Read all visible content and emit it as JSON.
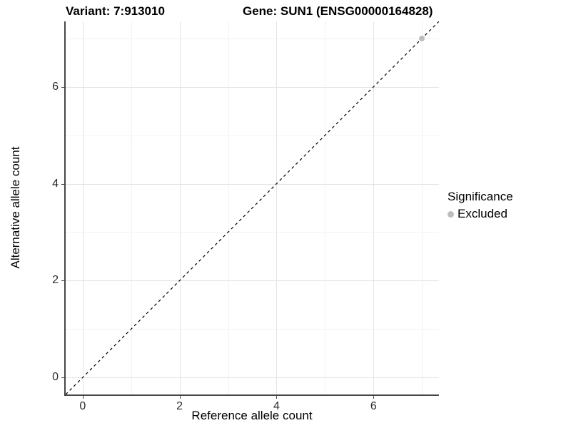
{
  "chart_data": {
    "type": "scatter",
    "title_left": "Variant: 7:913010",
    "title_right": "Gene: SUN1 (ENSG00000164828)",
    "xlabel": "Reference allele count",
    "ylabel": "Alternative allele count",
    "xlim": [
      -0.35,
      7.35
    ],
    "ylim": [
      -0.35,
      7.35
    ],
    "x_major_ticks": [
      0,
      2,
      4,
      6
    ],
    "y_major_ticks": [
      0,
      2,
      4,
      6
    ],
    "x_minor_ticks": [
      1,
      3,
      5,
      7
    ],
    "y_minor_ticks": [
      1,
      3,
      5,
      7
    ],
    "grid": true,
    "abline": {
      "slope": 1,
      "intercept": 0,
      "style": "dashed",
      "color": "#000000"
    },
    "series": [
      {
        "name": "Excluded",
        "color": "#bdbdbd",
        "points": [
          {
            "x": 7,
            "y": 7
          }
        ]
      }
    ],
    "legend": {
      "title": "Significance",
      "position": "right",
      "items": [
        {
          "label": "Excluded",
          "color": "#bdbdbd"
        }
      ]
    },
    "colors": {
      "background": "#ffffff",
      "grid_major": "#e4e4e4",
      "grid_minor": "#f2f2f2",
      "axis_line": "#474747",
      "tick_text": "#2b2b2b",
      "point": "#bdbdbd"
    }
  }
}
